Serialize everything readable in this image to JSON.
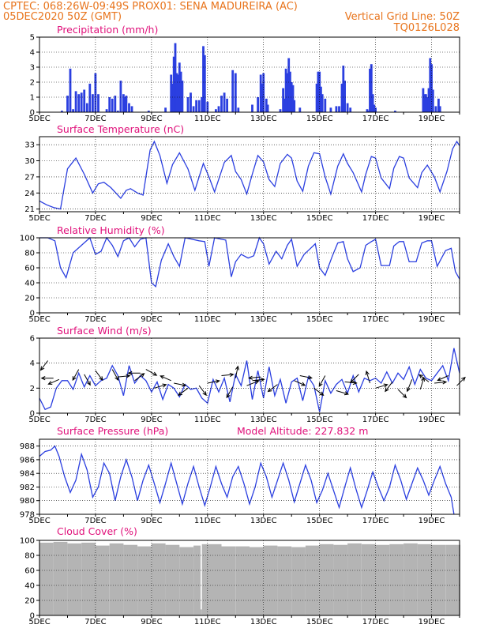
{
  "header": {
    "left_line1": "CPTEC:   068:26W-09:49S   PROX01: SENA MADUREIRA (AC)",
    "left_line2": "05DEC2020 50Z (GMT)",
    "right_line2": "Vertical Grid Line: 50Z",
    "right_line3": "TQ0126L028"
  },
  "colors": {
    "header": "#e8741c",
    "title": "#e0107a",
    "series": "#2b3fe0",
    "cloud": "#b4b4b4"
  },
  "x_axis": {
    "tick_labels": [
      "5DEC",
      "7DEC",
      "9DEC",
      "11DEC",
      "13DEC",
      "15DEC",
      "17DEC",
      "19DEC"
    ],
    "tick_days": [
      5,
      7,
      9,
      11,
      13,
      15,
      17,
      19
    ],
    "range_days": [
      5,
      20
    ]
  },
  "chart_data": [
    {
      "id": "precip",
      "type": "bar",
      "title": "Precipitation (mm/h)",
      "ylim": [
        0,
        5
      ],
      "yticks": [
        0,
        1,
        2,
        3,
        4,
        5
      ],
      "bars": [
        [
          5.8,
          0.1
        ],
        [
          6.0,
          1.1
        ],
        [
          6.1,
          2.9
        ],
        [
          6.2,
          0.2
        ],
        [
          6.3,
          1.4
        ],
        [
          6.4,
          1.2
        ],
        [
          6.5,
          1.3
        ],
        [
          6.6,
          1.5
        ],
        [
          6.7,
          0.6
        ],
        [
          6.8,
          1.9
        ],
        [
          6.9,
          1.2
        ],
        [
          7.0,
          2.6
        ],
        [
          7.1,
          1.2
        ],
        [
          7.4,
          0.2
        ],
        [
          7.5,
          1.0
        ],
        [
          7.6,
          0.9
        ],
        [
          7.7,
          1.1
        ],
        [
          7.8,
          0.1
        ],
        [
          7.9,
          2.1
        ],
        [
          8.0,
          1.2
        ],
        [
          8.05,
          1.0
        ],
        [
          8.1,
          1.1
        ],
        [
          8.2,
          0.6
        ],
        [
          8.3,
          0.4
        ],
        [
          8.9,
          0.1
        ],
        [
          9.5,
          0.3
        ],
        [
          9.7,
          2.5
        ],
        [
          9.75,
          1.9
        ],
        [
          9.8,
          3.7
        ],
        [
          9.85,
          4.6
        ],
        [
          9.9,
          2.6
        ],
        [
          9.95,
          2.5
        ],
        [
          10.0,
          3.3
        ],
        [
          10.05,
          2.7
        ],
        [
          10.1,
          2.1
        ],
        [
          10.3,
          1.0
        ],
        [
          10.4,
          1.3
        ],
        [
          10.5,
          0.4
        ],
        [
          10.6,
          0.8
        ],
        [
          10.7,
          0.8
        ],
        [
          10.8,
          1.0
        ],
        [
          10.85,
          4.4
        ],
        [
          10.9,
          3.8
        ],
        [
          11.0,
          0.7
        ],
        [
          11.3,
          0.2
        ],
        [
          11.4,
          0.4
        ],
        [
          11.5,
          1.1
        ],
        [
          11.6,
          1.3
        ],
        [
          11.7,
          0.9
        ],
        [
          11.9,
          2.8
        ],
        [
          12.0,
          2.6
        ],
        [
          12.1,
          0.3
        ],
        [
          12.6,
          0.5
        ],
        [
          12.8,
          1.0
        ],
        [
          12.9,
          2.5
        ],
        [
          12.95,
          1.9
        ],
        [
          13.0,
          2.6
        ],
        [
          13.1,
          0.9
        ],
        [
          13.15,
          0.5
        ],
        [
          13.6,
          0.2
        ],
        [
          13.7,
          1.6
        ],
        [
          13.75,
          0.9
        ],
        [
          13.8,
          2.9
        ],
        [
          13.85,
          2.6
        ],
        [
          13.9,
          3.6
        ],
        [
          13.95,
          2.7
        ],
        [
          14.0,
          2.0
        ],
        [
          14.05,
          1.8
        ],
        [
          14.1,
          0.8
        ],
        [
          14.3,
          0.3
        ],
        [
          14.9,
          1.9
        ],
        [
          14.95,
          2.7
        ],
        [
          15.0,
          2.7
        ],
        [
          15.05,
          1.7
        ],
        [
          15.1,
          1.2
        ],
        [
          15.2,
          0.9
        ],
        [
          15.4,
          0.3
        ],
        [
          15.6,
          0.4
        ],
        [
          15.7,
          0.4
        ],
        [
          15.8,
          1.9
        ],
        [
          15.85,
          3.1
        ],
        [
          15.9,
          2.1
        ],
        [
          16.0,
          0.6
        ],
        [
          16.1,
          0.3
        ],
        [
          16.7,
          0.2
        ],
        [
          16.75,
          0.1
        ],
        [
          16.8,
          2.9
        ],
        [
          16.85,
          3.2
        ],
        [
          16.9,
          1.2
        ],
        [
          16.95,
          0.5
        ],
        [
          17.0,
          0.3
        ],
        [
          17.7,
          0.1
        ],
        [
          18.7,
          1.6
        ],
        [
          18.75,
          1.2
        ],
        [
          18.8,
          1.2
        ],
        [
          18.85,
          1.0
        ],
        [
          18.9,
          1.6
        ],
        [
          18.95,
          3.6
        ],
        [
          19.0,
          3.2
        ],
        [
          19.05,
          1.5
        ],
        [
          19.15,
          0.4
        ],
        [
          19.25,
          0.9
        ],
        [
          19.3,
          0.4
        ]
      ]
    },
    {
      "id": "temp",
      "type": "line",
      "title": "Surface Temperature (nC)",
      "ylim": [
        20.5,
        34.5
      ],
      "yticks": [
        21,
        24,
        27,
        30,
        33
      ],
      "x": [
        5.0,
        5.25,
        5.5,
        5.75,
        6.0,
        6.3,
        6.6,
        6.9,
        7.1,
        7.3,
        7.55,
        7.9,
        8.1,
        8.25,
        8.5,
        8.7,
        8.95,
        9.1,
        9.3,
        9.55,
        9.75,
        10.0,
        10.3,
        10.55,
        10.85,
        11.05,
        11.25,
        11.6,
        11.85,
        12.0,
        12.2,
        12.4,
        12.6,
        12.8,
        13.0,
        13.2,
        13.4,
        13.6,
        13.85,
        14.0,
        14.2,
        14.4,
        14.6,
        14.8,
        15.0,
        15.2,
        15.4,
        15.65,
        15.85,
        16.0,
        16.2,
        16.5,
        16.65,
        16.85,
        17.0,
        17.2,
        17.5,
        17.65,
        17.85,
        18.0,
        18.2,
        18.5,
        18.65,
        18.85,
        19.1,
        19.3,
        19.55,
        19.75,
        19.9,
        20.0
      ],
      "y": [
        22.5,
        21.8,
        21.3,
        21.0,
        28.5,
        30.5,
        27.5,
        24.0,
        25.7,
        26.0,
        25.0,
        23.0,
        24.5,
        24.8,
        24.0,
        23.6,
        32.0,
        33.6,
        31.0,
        25.8,
        29.3,
        31.5,
        28.5,
        24.5,
        29.5,
        27.0,
        24.2,
        29.7,
        31.0,
        28.0,
        26.5,
        23.8,
        27.5,
        31.0,
        29.8,
        26.5,
        25.2,
        29.5,
        31.2,
        30.5,
        26.2,
        24.3,
        29.0,
        31.5,
        31.3,
        27.0,
        23.8,
        29.0,
        31.3,
        29.5,
        27.8,
        24.2,
        27.5,
        30.8,
        30.5,
        26.8,
        24.8,
        28.6,
        30.8,
        30.5,
        26.8,
        25.0,
        27.8,
        29.2,
        27.0,
        24.2,
        28.0,
        32.2,
        33.6,
        32.8
      ]
    },
    {
      "id": "rh",
      "type": "line",
      "title": "Relative Humidity (%)",
      "ylim": [
        0,
        100
      ],
      "yticks": [
        0,
        20,
        40,
        60,
        80,
        100
      ],
      "x": [
        5.0,
        5.3,
        5.55,
        5.75,
        5.95,
        6.2,
        6.5,
        6.8,
        7.0,
        7.2,
        7.4,
        7.6,
        7.8,
        8.0,
        8.2,
        8.4,
        8.6,
        8.8,
        9.0,
        9.15,
        9.35,
        9.6,
        9.8,
        10.0,
        10.2,
        10.45,
        10.7,
        10.9,
        11.05,
        11.25,
        11.5,
        11.65,
        11.85,
        12.0,
        12.2,
        12.45,
        12.65,
        12.85,
        13.0,
        13.2,
        13.45,
        13.65,
        13.85,
        14.0,
        14.2,
        14.45,
        14.65,
        14.85,
        15.0,
        15.2,
        15.45,
        15.65,
        15.85,
        16.0,
        16.2,
        16.45,
        16.65,
        16.85,
        17.0,
        17.2,
        17.5,
        17.65,
        17.85,
        18.0,
        18.2,
        18.45,
        18.65,
        18.85,
        19.0,
        19.2,
        19.5,
        19.7,
        19.85,
        20.0
      ],
      "y": [
        100,
        100,
        96,
        60,
        47,
        80,
        90,
        100,
        78,
        82,
        100,
        90,
        75,
        96,
        100,
        88,
        98,
        100,
        40,
        35,
        70,
        92,
        75,
        62,
        100,
        98,
        96,
        95,
        62,
        100,
        98,
        97,
        48,
        68,
        78,
        73,
        76,
        100,
        92,
        65,
        82,
        72,
        90,
        98,
        62,
        78,
        85,
        92,
        60,
        50,
        75,
        93,
        95,
        72,
        55,
        60,
        90,
        95,
        98,
        63,
        63,
        89,
        95,
        95,
        68,
        68,
        93,
        96,
        96,
        62,
        83,
        86,
        55,
        45
      ]
    },
    {
      "id": "wind",
      "type": "line",
      "title": "Surface Wind (m/s)",
      "ylim": [
        0,
        6
      ],
      "yticks": [
        0,
        2,
        4,
        6
      ],
      "x": [
        5.0,
        5.2,
        5.4,
        5.6,
        5.8,
        6.0,
        6.2,
        6.4,
        6.6,
        6.8,
        7.0,
        7.2,
        7.4,
        7.6,
        7.8,
        8.0,
        8.2,
        8.4,
        8.6,
        8.8,
        9.0,
        9.2,
        9.4,
        9.6,
        9.8,
        10.0,
        10.2,
        10.4,
        10.6,
        10.8,
        11.0,
        11.2,
        11.4,
        11.6,
        11.8,
        12.0,
        12.2,
        12.4,
        12.6,
        12.8,
        13.0,
        13.2,
        13.4,
        13.6,
        13.8,
        14.0,
        14.2,
        14.4,
        14.6,
        14.8,
        15.0,
        15.2,
        15.4,
        15.6,
        15.8,
        16.0,
        16.2,
        16.4,
        16.6,
        16.8,
        17.0,
        17.2,
        17.4,
        17.6,
        17.8,
        18.0,
        18.2,
        18.4,
        18.6,
        18.8,
        19.0,
        19.2,
        19.4,
        19.6,
        19.8,
        20.0
      ],
      "y": [
        1.2,
        0.3,
        0.5,
        2.0,
        2.6,
        2.6,
        1.9,
        3.2,
        2.1,
        3.0,
        2.2,
        2.6,
        2.8,
        3.8,
        3.0,
        1.4,
        3.8,
        2.4,
        3.0,
        2.6,
        1.7,
        2.5,
        1.1,
        2.3,
        2.0,
        1.3,
        2.3,
        1.9,
        2.0,
        1.2,
        0.8,
        2.7,
        1.7,
        2.8,
        0.9,
        3.1,
        2.2,
        4.2,
        1.1,
        3.4,
        1.2,
        3.7,
        1.4,
        2.7,
        0.8,
        2.5,
        2.8,
        1.0,
        2.9,
        2.2,
        0.1,
        2.6,
        1.6,
        2.3,
        2.7,
        1.6,
        3.0,
        1.7,
        2.8,
        2.6,
        2.8,
        2.4,
        3.3,
        2.4,
        3.2,
        2.7,
        3.7,
        2.3,
        3.5,
        2.8,
        2.6,
        3.2,
        3.8,
        2.6,
        5.2,
        3.2
      ]
    },
    {
      "id": "pressure",
      "type": "line",
      "title": "Surface Pressure (hPa)",
      "subtitle": "Model Altitude: 227.832 m",
      "ylim": [
        978,
        989
      ],
      "yticks": [
        978,
        980,
        982,
        984,
        986,
        988
      ],
      "x": [
        5.0,
        5.2,
        5.4,
        5.55,
        5.7,
        5.9,
        6.1,
        6.3,
        6.5,
        6.7,
        6.9,
        7.1,
        7.3,
        7.5,
        7.7,
        7.9,
        8.1,
        8.3,
        8.5,
        8.7,
        8.9,
        9.1,
        9.3,
        9.5,
        9.7,
        9.9,
        10.1,
        10.3,
        10.5,
        10.7,
        10.9,
        11.1,
        11.3,
        11.5,
        11.7,
        11.9,
        12.1,
        12.3,
        12.5,
        12.7,
        12.9,
        13.1,
        13.3,
        13.5,
        13.7,
        13.9,
        14.1,
        14.3,
        14.5,
        14.7,
        14.9,
        15.1,
        15.3,
        15.5,
        15.7,
        15.9,
        16.1,
        16.3,
        16.5,
        16.7,
        16.9,
        17.1,
        17.3,
        17.5,
        17.7,
        17.9,
        18.1,
        18.3,
        18.5,
        18.7,
        18.9,
        19.1,
        19.3,
        19.5,
        19.7,
        19.8
      ],
      "y": [
        986.5,
        987.2,
        987.4,
        988.0,
        986.5,
        983.5,
        981.2,
        983.0,
        986.8,
        984.5,
        980.5,
        982.0,
        985.5,
        984.0,
        980.0,
        983.5,
        986.0,
        983.5,
        980.0,
        983.0,
        985.2,
        982.5,
        979.7,
        982.5,
        985.5,
        982.5,
        979.5,
        982.5,
        985.0,
        982.0,
        979.3,
        982.0,
        985.0,
        982.5,
        980.5,
        983.5,
        985.0,
        982.5,
        979.5,
        982.0,
        985.5,
        983.5,
        980.5,
        983.0,
        985.5,
        983.0,
        979.8,
        982.5,
        985.2,
        983.0,
        979.7,
        981.5,
        984.0,
        981.5,
        979.0,
        982.0,
        984.8,
        981.7,
        979.0,
        981.5,
        984.2,
        982.0,
        980.0,
        982.0,
        985.2,
        983.0,
        980.2,
        982.5,
        984.8,
        983.0,
        980.8,
        983.0,
        985.0,
        982.5,
        980.5,
        978.0
      ]
    },
    {
      "id": "cloud",
      "type": "area",
      "title": "Cloud Cover (%)",
      "ylim": [
        0,
        100
      ],
      "yticks": [
        0,
        20,
        40,
        60,
        80,
        100
      ],
      "cloud_bars": [
        [
          5.0,
          97
        ],
        [
          5.5,
          98
        ],
        [
          6.0,
          96
        ],
        [
          6.5,
          97
        ],
        [
          7.0,
          93
        ],
        [
          7.5,
          96
        ],
        [
          8.0,
          94
        ],
        [
          8.5,
          92
        ],
        [
          9.0,
          96
        ],
        [
          9.5,
          94
        ],
        [
          10.0,
          91
        ],
        [
          10.5,
          93
        ],
        [
          10.75,
          8
        ],
        [
          10.8,
          95
        ],
        [
          11.5,
          92
        ],
        [
          12.0,
          92
        ],
        [
          12.5,
          91
        ],
        [
          13.0,
          93
        ],
        [
          13.5,
          92
        ],
        [
          14.0,
          91
        ],
        [
          14.5,
          93
        ],
        [
          15.0,
          95
        ],
        [
          15.5,
          94
        ],
        [
          16.0,
          96
        ],
        [
          16.5,
          95
        ],
        [
          17.0,
          94
        ],
        [
          17.5,
          95
        ],
        [
          18.0,
          96
        ],
        [
          18.5,
          95
        ],
        [
          19.0,
          94
        ],
        [
          19.5,
          94
        ],
        [
          20.0,
          94
        ]
      ]
    }
  ]
}
